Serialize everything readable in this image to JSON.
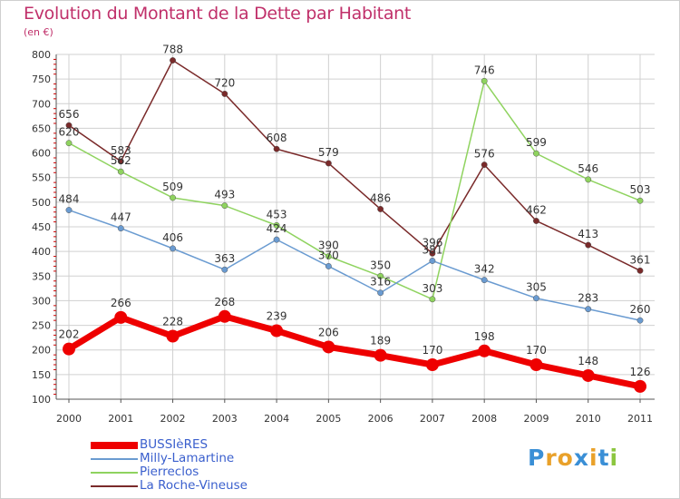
{
  "title": "Evolution du Montant de la Dette par Habitant",
  "subtitle": "(en €)",
  "logo_text": "Proxiti",
  "colors": {
    "title": "#c0306a",
    "grid": "#d0d0d0",
    "axis_red": "#cc0000"
  },
  "chart_data": {
    "type": "line",
    "title": "Evolution du Montant de la Dette par Habitant",
    "subtitle": "(en €)",
    "categories": [
      "2000",
      "2001",
      "2002",
      "2003",
      "2004",
      "2005",
      "2006",
      "2007",
      "2008",
      "2009",
      "2010",
      "2011"
    ],
    "yticks": [
      100,
      150,
      200,
      250,
      300,
      350,
      400,
      450,
      500,
      550,
      600,
      650,
      700,
      750,
      800
    ],
    "ylim": [
      100,
      800
    ],
    "grid": true,
    "legend_position": "bottom-left",
    "series": [
      {
        "name": "BUSSIèRES",
        "color": "#ee0000",
        "width": 7,
        "values": [
          202,
          266,
          228,
          268,
          239,
          206,
          189,
          170,
          198,
          170,
          148,
          126
        ]
      },
      {
        "name": "Milly-Lamartine",
        "color": "#6a9bd1",
        "width": 1.5,
        "values": [
          484,
          447,
          406,
          363,
          424,
          370,
          316,
          381,
          342,
          305,
          283,
          260
        ]
      },
      {
        "name": "Pierreclos",
        "color": "#8fd35f",
        "width": 1.5,
        "values": [
          620,
          562,
          509,
          493,
          453,
          390,
          350,
          303,
          746,
          599,
          546,
          503
        ]
      },
      {
        "name": "La Roche-Vineuse",
        "color": "#7a2a2a",
        "width": 1.5,
        "values": [
          656,
          583,
          788,
          720,
          608,
          579,
          486,
          396,
          576,
          462,
          413,
          361
        ]
      }
    ]
  }
}
